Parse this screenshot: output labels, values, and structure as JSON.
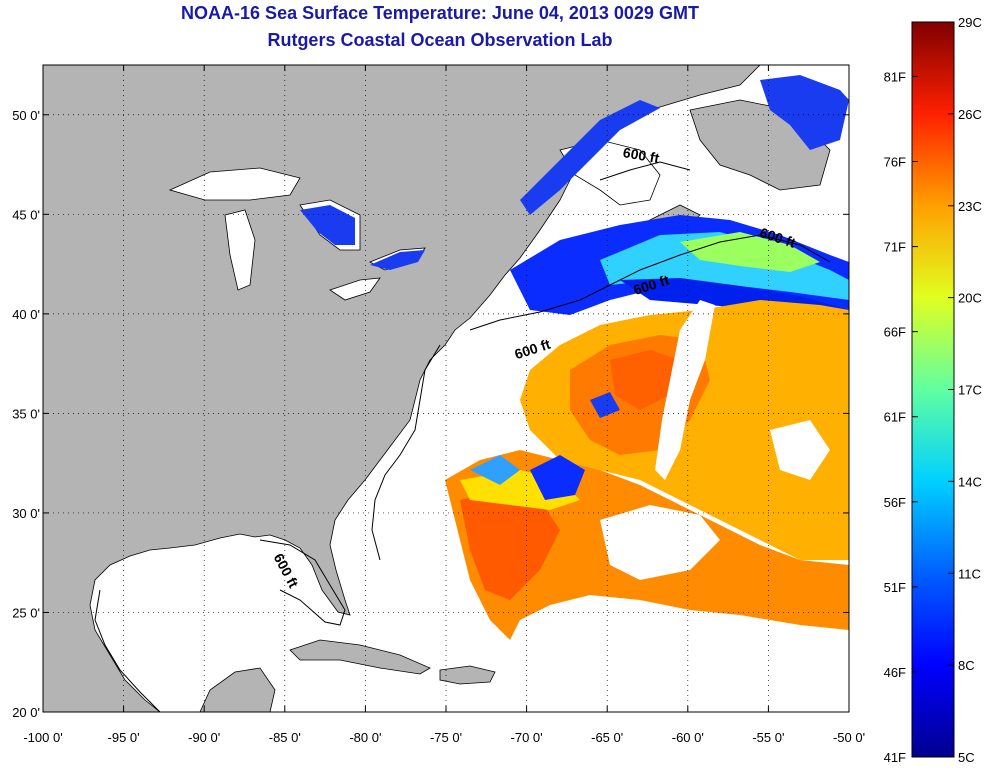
{
  "title": "NOAA-16 Sea Surface Temperature:  June 04, 2013 0029 GMT",
  "subtitle": "Rutgers Coastal Ocean Observation Lab",
  "map": {
    "lon_range": [
      -100,
      -50
    ],
    "lat_range": [
      20,
      52.5
    ],
    "lon_ticks": [
      "-100 0'",
      "-95 0'",
      "-90 0'",
      "-85 0'",
      "-80 0'",
      "-75 0'",
      "-70 0'",
      "-65 0'",
      "-60 0'",
      "-55 0'",
      "-50 0'"
    ],
    "lon_values": [
      -100,
      -95,
      -90,
      -85,
      -80,
      -75,
      -70,
      -65,
      -60,
      -55,
      -50
    ],
    "lat_ticks": [
      "20 0'",
      "25 0'",
      "30 0'",
      "35 0'",
      "40 0'",
      "45 0'",
      "50 0'"
    ],
    "lat_values": [
      20,
      25,
      30,
      35,
      40,
      45,
      50
    ],
    "contour_label": "600 ft",
    "land_color": "#b4b4b4",
    "ocean_color": "#ffffff"
  },
  "colorbar": {
    "min_c": 5,
    "max_c": 29,
    "celsius_labels": [
      "5C",
      "8C",
      "11C",
      "14C",
      "17C",
      "20C",
      "23C",
      "26C",
      "29C"
    ],
    "celsius_values": [
      5,
      8,
      11,
      14,
      17,
      20,
      23,
      26,
      29
    ],
    "fahrenheit_labels": [
      "41F",
      "46F",
      "51F",
      "56F",
      "61F",
      "66F",
      "71F",
      "76F",
      "81F"
    ],
    "fahrenheit_values": [
      41,
      46,
      51,
      56,
      61,
      66,
      71,
      76,
      81
    ],
    "colors": [
      "#00008f",
      "#0000ff",
      "#0080ff",
      "#00ffff",
      "#80ff80",
      "#ffff00",
      "#ff8000",
      "#ff0000",
      "#800000"
    ]
  }
}
